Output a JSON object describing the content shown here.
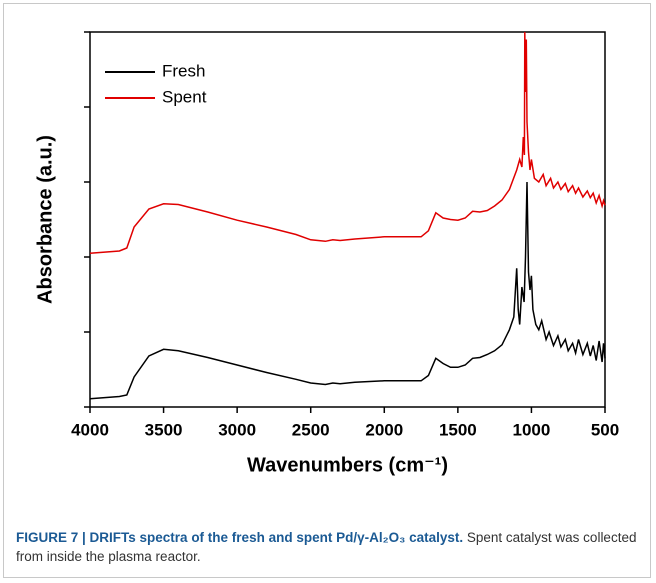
{
  "chart_data": {
    "type": "line",
    "x_label": "Wavenumbers (cm⁻¹)",
    "y_label": "Absorbance (a.u.)",
    "xlim": [
      4000,
      500
    ],
    "xticks": [
      4000,
      3500,
      3000,
      2500,
      2000,
      1500,
      1000,
      500
    ],
    "ylim": [
      0,
      5
    ],
    "yticks": [
      0,
      1,
      2,
      3,
      4,
      5
    ],
    "legend": "upper left",
    "series": [
      {
        "name": "Fresh",
        "color": "#000000",
        "x": [
          4000,
          3800,
          3750,
          3700,
          3600,
          3500,
          3400,
          3200,
          3000,
          2800,
          2600,
          2500,
          2400,
          2350,
          2300,
          2200,
          2000,
          1800,
          1750,
          1700,
          1650,
          1600,
          1550,
          1500,
          1450,
          1400,
          1350,
          1300,
          1250,
          1200,
          1150,
          1120,
          1100,
          1090,
          1080,
          1065,
          1050,
          1040,
          1030,
          1020,
          1010,
          1000,
          990,
          970,
          950,
          930,
          900,
          880,
          850,
          820,
          800,
          770,
          750,
          720,
          700,
          680,
          650,
          620,
          600,
          580,
          560,
          540,
          520,
          510,
          500
        ],
        "values": [
          0.11,
          0.14,
          0.16,
          0.4,
          0.68,
          0.77,
          0.75,
          0.66,
          0.56,
          0.46,
          0.37,
          0.32,
          0.3,
          0.32,
          0.31,
          0.33,
          0.35,
          0.35,
          0.35,
          0.42,
          0.65,
          0.58,
          0.53,
          0.53,
          0.56,
          0.65,
          0.66,
          0.7,
          0.75,
          0.83,
          1.03,
          1.2,
          1.85,
          1.3,
          1.1,
          1.6,
          1.4,
          2.0,
          3.0,
          1.8,
          1.56,
          1.75,
          1.3,
          1.1,
          1.03,
          1.15,
          0.9,
          1.0,
          0.82,
          0.95,
          0.8,
          0.9,
          0.75,
          0.85,
          0.72,
          0.9,
          0.7,
          0.85,
          0.68,
          0.82,
          0.62,
          0.88,
          0.6,
          0.85,
          0.65
        ]
      },
      {
        "name": "Spent",
        "color": "#e00000",
        "x": [
          4000,
          3800,
          3750,
          3700,
          3600,
          3500,
          3400,
          3200,
          3000,
          2800,
          2600,
          2500,
          2400,
          2350,
          2300,
          2200,
          2000,
          1800,
          1750,
          1700,
          1650,
          1600,
          1550,
          1500,
          1450,
          1400,
          1350,
          1300,
          1250,
          1200,
          1150,
          1100,
          1080,
          1065,
          1055,
          1048,
          1045,
          1040,
          1035,
          1030,
          1020,
          1010,
          1000,
          980,
          950,
          920,
          900,
          870,
          850,
          820,
          800,
          770,
          750,
          720,
          700,
          680,
          650,
          620,
          600,
          580,
          560,
          540,
          520,
          510,
          500
        ],
        "values": [
          2.05,
          2.08,
          2.12,
          2.4,
          2.64,
          2.71,
          2.7,
          2.6,
          2.49,
          2.4,
          2.3,
          2.23,
          2.21,
          2.23,
          2.22,
          2.24,
          2.27,
          2.27,
          2.27,
          2.35,
          2.59,
          2.52,
          2.5,
          2.49,
          2.52,
          2.61,
          2.6,
          2.62,
          2.68,
          2.76,
          2.9,
          3.16,
          3.3,
          3.2,
          3.6,
          3.36,
          5.0,
          4.2,
          4.9,
          3.8,
          3.4,
          3.16,
          3.3,
          3.05,
          3.0,
          3.1,
          2.95,
          3.05,
          2.92,
          3.0,
          2.9,
          2.98,
          2.87,
          2.95,
          2.85,
          2.92,
          2.8,
          2.88,
          2.79,
          2.85,
          2.72,
          2.82,
          2.68,
          2.75,
          2.69
        ]
      }
    ]
  },
  "caption": {
    "title": "FIGURE 7 | DRIFTs spectra of the fresh and spent Pd/γ-Al₂O₃ catalyst.",
    "text": "Spent catalyst was collected from inside the plasma reactor."
  }
}
